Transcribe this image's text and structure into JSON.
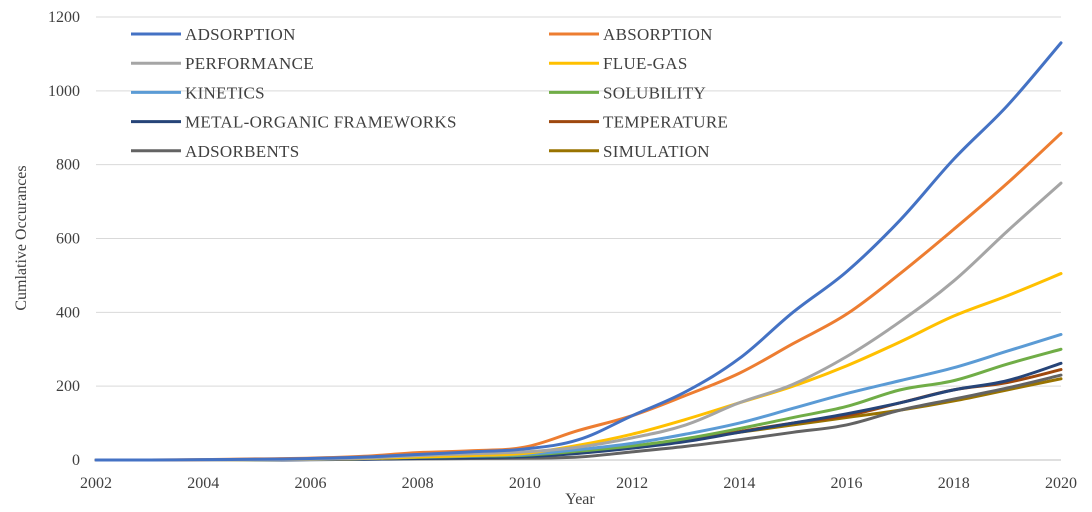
{
  "chart_data": {
    "type": "line",
    "xlabel": "Year",
    "ylabel": "Cumlative Occurances",
    "xlim": [
      2002,
      2020
    ],
    "ylim": [
      0,
      1200
    ],
    "x_ticks": [
      "2002",
      "2004",
      "2006",
      "2008",
      "2010",
      "2012",
      "2014",
      "2016",
      "2018",
      "2020"
    ],
    "y_ticks": [
      "0",
      "200",
      "400",
      "600",
      "800",
      "1000",
      "1200"
    ],
    "grid": "horizontal",
    "legend_position": "top-left",
    "x": [
      2002,
      2003,
      2004,
      2005,
      2006,
      2007,
      2008,
      2009,
      2010,
      2011,
      2012,
      2013,
      2014,
      2015,
      2016,
      2017,
      2018,
      2019,
      2020
    ],
    "series": [
      {
        "name": "ADSORPTION",
        "color": "#4472C4",
        "values": [
          0,
          0,
          1,
          2,
          4,
          8,
          15,
          22,
          30,
          55,
          120,
          185,
          275,
          400,
          510,
          650,
          815,
          960,
          1130
        ]
      },
      {
        "name": "ABSORPTION",
        "color": "#ED7D31",
        "values": [
          0,
          0,
          1,
          3,
          5,
          10,
          20,
          25,
          35,
          80,
          120,
          175,
          235,
          315,
          395,
          505,
          625,
          750,
          885
        ]
      },
      {
        "name": "PERFORMANCE",
        "color": "#A5A5A5",
        "values": [
          0,
          0,
          0,
          1,
          2,
          5,
          12,
          17,
          22,
          35,
          60,
          95,
          155,
          205,
          280,
          375,
          485,
          620,
          750
        ]
      },
      {
        "name": "FLUE-GAS",
        "color": "#FFC000",
        "values": [
          0,
          0,
          0,
          1,
          2,
          4,
          8,
          12,
          18,
          40,
          70,
          110,
          155,
          200,
          255,
          320,
          390,
          445,
          505
        ]
      },
      {
        "name": "KINETICS",
        "color": "#5B9BD5",
        "values": [
          0,
          0,
          0,
          1,
          2,
          4,
          8,
          11,
          15,
          28,
          45,
          70,
          100,
          140,
          180,
          215,
          250,
          295,
          340
        ]
      },
      {
        "name": "SOLUBILITY",
        "color": "#70AD47",
        "values": [
          0,
          0,
          0,
          1,
          2,
          4,
          7,
          10,
          13,
          24,
          38,
          58,
          85,
          115,
          145,
          190,
          215,
          260,
          300
        ]
      },
      {
        "name": "METAL-ORGANIC FRAMEWORKS",
        "color": "#264478",
        "values": [
          0,
          0,
          0,
          0,
          1,
          2,
          4,
          6,
          9,
          18,
          32,
          50,
          75,
          100,
          125,
          155,
          190,
          215,
          262
        ]
      },
      {
        "name": "TEMPERATURE",
        "color": "#9E480E",
        "values": [
          0,
          0,
          0,
          1,
          2,
          3,
          6,
          8,
          10,
          20,
          33,
          52,
          77,
          100,
          120,
          155,
          190,
          210,
          245
        ]
      },
      {
        "name": "ADSORBENTS",
        "color": "#636363",
        "values": [
          0,
          0,
          0,
          0,
          1,
          2,
          3,
          4,
          5,
          8,
          22,
          37,
          55,
          75,
          95,
          135,
          165,
          195,
          230
        ]
      },
      {
        "name": "SIMULATION",
        "color": "#997300",
        "values": [
          0,
          0,
          0,
          1,
          2,
          4,
          8,
          12,
          16,
          25,
          38,
          55,
          75,
          95,
          115,
          135,
          160,
          190,
          220
        ]
      }
    ]
  }
}
